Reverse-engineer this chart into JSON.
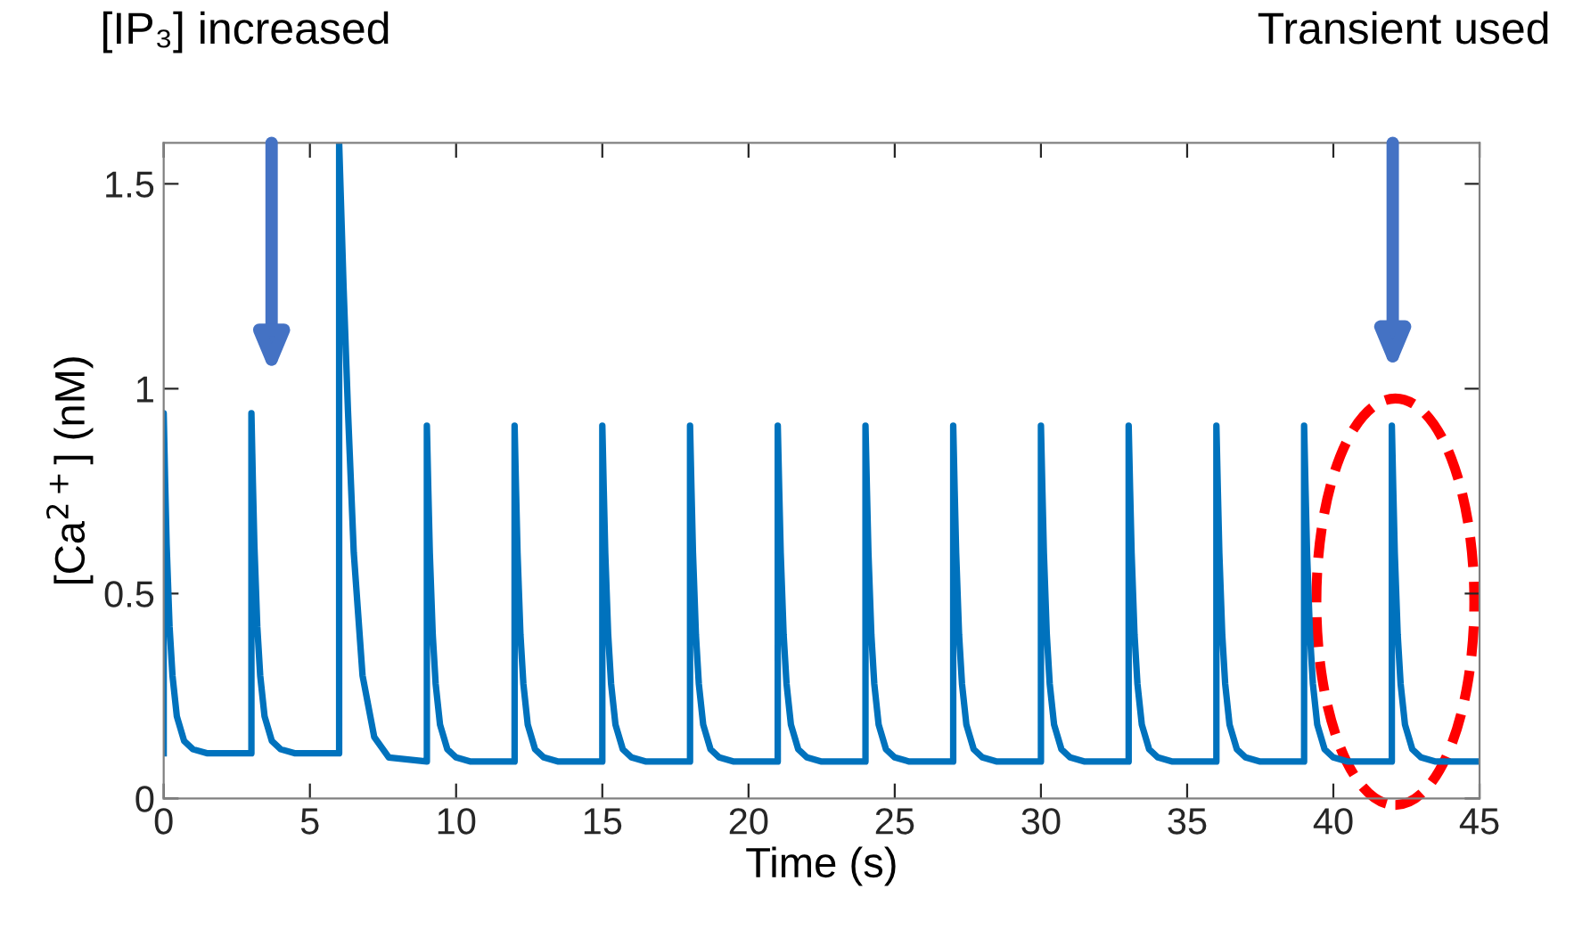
{
  "chart_data": {
    "type": "line",
    "xlabel": "Time (s)",
    "ylabel": "[Ca$^{2+}$] (nM)",
    "xlim": [
      0,
      45
    ],
    "ylim": [
      0,
      1.6
    ],
    "xticks": [
      0,
      5,
      10,
      15,
      20,
      25,
      30,
      35,
      40,
      45
    ],
    "yticks": [
      0,
      0.5,
      1,
      1.5
    ],
    "grid": false,
    "legend": false,
    "marker": "none",
    "line_style": "solid",
    "series": [
      {
        "color": "#0072bd",
        "x": [
          0,
          0,
          0.05,
          0.1,
          0.2,
          0.3,
          0.45,
          0.7,
          1,
          1.5,
          3,
          3,
          3.05,
          3.1,
          3.2,
          3.3,
          3.45,
          3.7,
          4,
          4.5,
          6,
          6,
          6.15,
          6.3,
          6.5,
          6.8,
          7.2,
          7.7,
          9,
          9,
          9.05,
          9.1,
          9.2,
          9.3,
          9.45,
          9.7,
          10,
          10.5,
          12,
          12,
          12.05,
          12.1,
          12.2,
          12.3,
          12.45,
          12.7,
          13,
          13.5,
          15,
          15,
          15.05,
          15.1,
          15.2,
          15.3,
          15.45,
          15.7,
          16,
          16.5,
          18,
          18,
          18.05,
          18.1,
          18.2,
          18.3,
          18.45,
          18.7,
          19,
          19.5,
          21,
          21,
          21.05,
          21.1,
          21.2,
          21.3,
          21.45,
          21.7,
          22,
          22.5,
          24,
          24,
          24.05,
          24.1,
          24.2,
          24.3,
          24.45,
          24.7,
          25,
          25.5,
          27,
          27,
          27.05,
          27.1,
          27.2,
          27.3,
          27.45,
          27.7,
          28,
          28.5,
          30,
          30,
          30.05,
          30.1,
          30.2,
          30.3,
          30.45,
          30.7,
          31,
          31.5,
          33,
          33,
          33.05,
          33.1,
          33.2,
          33.3,
          33.45,
          33.7,
          34,
          34.5,
          36,
          36,
          36.05,
          36.1,
          36.2,
          36.3,
          36.45,
          36.7,
          37,
          37.5,
          39,
          39,
          39.05,
          39.1,
          39.2,
          39.3,
          39.45,
          39.7,
          40,
          40.5,
          42,
          42,
          42.05,
          42.1,
          42.2,
          42.3,
          42.45,
          42.7,
          43,
          43.5,
          45
        ],
        "values": [
          0.11,
          0.94,
          0.77,
          0.62,
          0.42,
          0.3,
          0.2,
          0.14,
          0.12,
          0.11,
          0.11,
          0.94,
          0.77,
          0.62,
          0.42,
          0.3,
          0.2,
          0.14,
          0.12,
          0.11,
          0.11,
          1.6,
          1.25,
          0.95,
          0.6,
          0.3,
          0.15,
          0.1,
          0.09,
          0.91,
          0.75,
          0.6,
          0.4,
          0.28,
          0.18,
          0.12,
          0.1,
          0.09,
          0.09,
          0.91,
          0.75,
          0.6,
          0.4,
          0.28,
          0.18,
          0.12,
          0.1,
          0.09,
          0.09,
          0.91,
          0.75,
          0.6,
          0.4,
          0.28,
          0.18,
          0.12,
          0.1,
          0.09,
          0.09,
          0.91,
          0.75,
          0.6,
          0.4,
          0.28,
          0.18,
          0.12,
          0.1,
          0.09,
          0.09,
          0.91,
          0.75,
          0.6,
          0.4,
          0.28,
          0.18,
          0.12,
          0.1,
          0.09,
          0.09,
          0.91,
          0.75,
          0.6,
          0.4,
          0.28,
          0.18,
          0.12,
          0.1,
          0.09,
          0.09,
          0.91,
          0.75,
          0.6,
          0.4,
          0.28,
          0.18,
          0.12,
          0.1,
          0.09,
          0.09,
          0.91,
          0.75,
          0.6,
          0.4,
          0.28,
          0.18,
          0.12,
          0.1,
          0.09,
          0.09,
          0.91,
          0.75,
          0.6,
          0.4,
          0.28,
          0.18,
          0.12,
          0.1,
          0.09,
          0.09,
          0.91,
          0.75,
          0.6,
          0.4,
          0.28,
          0.18,
          0.12,
          0.1,
          0.09,
          0.09,
          0.91,
          0.75,
          0.6,
          0.4,
          0.28,
          0.18,
          0.12,
          0.1,
          0.09,
          0.09,
          0.91,
          0.75,
          0.6,
          0.4,
          0.28,
          0.18,
          0.12,
          0.1,
          0.09,
          0.09
        ]
      }
    ],
    "annotations": [
      "[IP₃] increased",
      "Transient used"
    ]
  }
}
